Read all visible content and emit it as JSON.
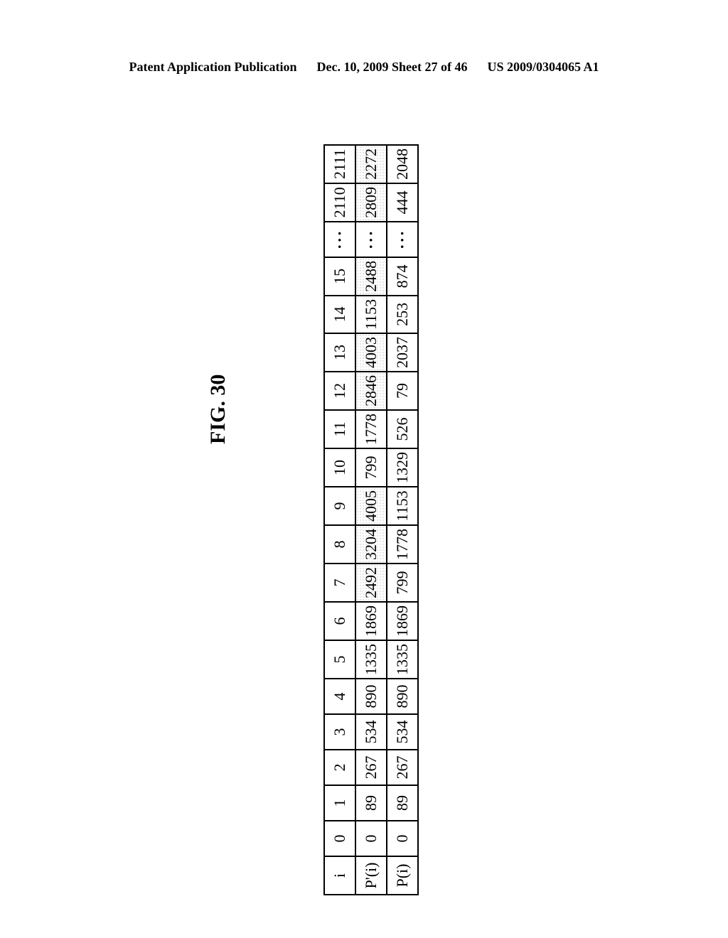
{
  "header": {
    "left": "Patent Application Publication",
    "mid": "Dec. 10, 2009  Sheet 27 of 46",
    "right": "US 2009/0304065 A1"
  },
  "figure_label": "FIG. 30",
  "table": {
    "rows": [
      {
        "label": "i",
        "cells": [
          {
            "v": "0"
          },
          {
            "v": "1"
          },
          {
            "v": "2"
          },
          {
            "v": "3"
          },
          {
            "v": "4"
          },
          {
            "v": "5"
          },
          {
            "v": "6"
          },
          {
            "v": "7"
          },
          {
            "v": "8"
          },
          {
            "v": "9"
          },
          {
            "v": "10"
          },
          {
            "v": "11"
          },
          {
            "v": "12"
          },
          {
            "v": "13"
          },
          {
            "v": "14"
          },
          {
            "v": "15"
          },
          {
            "v": "···",
            "ellipsis": true
          },
          {
            "v": "2110"
          },
          {
            "v": "2111"
          }
        ]
      },
      {
        "label": "P'(i)",
        "cells": [
          {
            "v": "0"
          },
          {
            "v": "89"
          },
          {
            "v": "267"
          },
          {
            "v": "534"
          },
          {
            "v": "890"
          },
          {
            "v": "1335"
          },
          {
            "v": "1869"
          },
          {
            "v": "2492",
            "shaded": true
          },
          {
            "v": "3204",
            "shaded": true
          },
          {
            "v": "4005",
            "shaded": true
          },
          {
            "v": "799"
          },
          {
            "v": "1778"
          },
          {
            "v": "2846",
            "shaded": true
          },
          {
            "v": "4003",
            "shaded": true
          },
          {
            "v": "1153"
          },
          {
            "v": "2488",
            "shaded": true
          },
          {
            "v": "···",
            "ellipsis": true
          },
          {
            "v": "2809",
            "shaded": true
          },
          {
            "v": "2272",
            "shaded": true
          }
        ]
      },
      {
        "label": "P(i)",
        "cells": [
          {
            "v": "0"
          },
          {
            "v": "89"
          },
          {
            "v": "267"
          },
          {
            "v": "534"
          },
          {
            "v": "890"
          },
          {
            "v": "1335"
          },
          {
            "v": "1869"
          },
          {
            "v": "799"
          },
          {
            "v": "1778"
          },
          {
            "v": "1153"
          },
          {
            "v": "1329"
          },
          {
            "v": "526"
          },
          {
            "v": "79"
          },
          {
            "v": "2037"
          },
          {
            "v": "253"
          },
          {
            "v": "874"
          },
          {
            "v": "···",
            "ellipsis": true
          },
          {
            "v": "444"
          },
          {
            "v": "2048"
          }
        ]
      }
    ],
    "border_color": "#000000",
    "shaded_pattern_color": "#999999",
    "background_color": "#ffffff",
    "cell_fontsize": 22
  }
}
